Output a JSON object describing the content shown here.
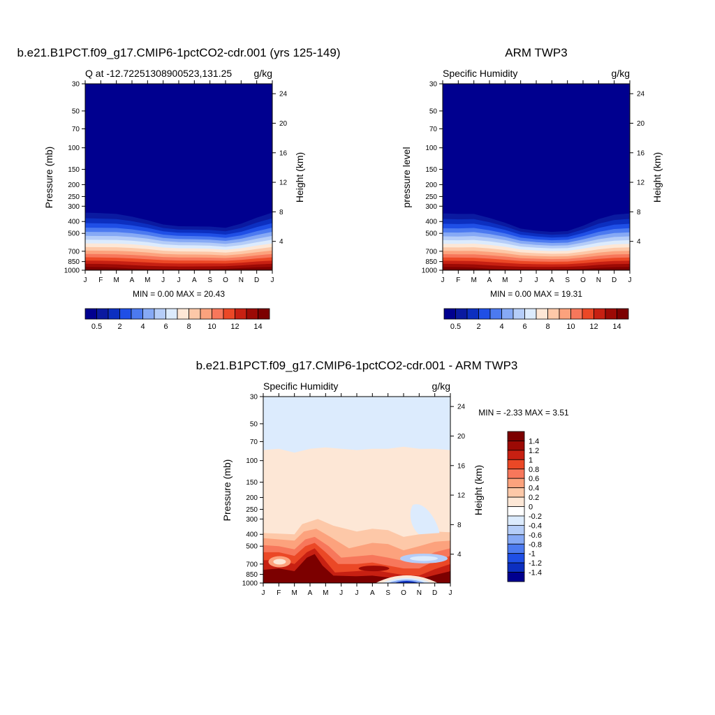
{
  "colors": {
    "levels": [
      "#00008f",
      "#0a1aa0",
      "#0c2fc0",
      "#1f4fe6",
      "#4c7af0",
      "#86a9f5",
      "#b5cdf8",
      "#dcebfd",
      "#fde7d6",
      "#fdc8a8",
      "#fca27d",
      "#f7775b",
      "#eb4826",
      "#c72012",
      "#9c0a05",
      "#7c0000"
    ],
    "diff": [
      "#00008f",
      "#0c2fc0",
      "#1f4fe6",
      "#4c7af0",
      "#86a9f5",
      "#b5cdf8",
      "#dcebfd",
      "#ffffff",
      "#fde7d6",
      "#fdc8a8",
      "#fca27d",
      "#f7775b",
      "#eb4826",
      "#c72012",
      "#9c0a05",
      "#7c0000"
    ]
  },
  "months": [
    "J",
    "F",
    "M",
    "A",
    "M",
    "J",
    "J",
    "A",
    "S",
    "O",
    "N",
    "D",
    "J"
  ],
  "pressure_ticks": [
    "30",
    "50",
    "70",
    "100",
    "150",
    "200",
    "250",
    "300",
    "400",
    "500",
    "700",
    "850",
    "1000"
  ],
  "height_ticks": [
    "24",
    "20",
    "16",
    "12",
    "8",
    "4"
  ],
  "chart_data": [
    {
      "type": "heatmap",
      "title": "b.e21.B1PCT.f09_g17.CMIP6-1pctCO2-cdr.001 (yrs 125-149)",
      "subtitle_left": "Q at -12.72251308900523,131.25",
      "subtitle_right": "g/kg",
      "ylabel": "Pressure (mb)",
      "ylabel_right": "Height (km)",
      "min_max": "MIN =   0.00 MAX =  20.43",
      "colorbar_labels": [
        "0.5",
        "2",
        "4",
        "6",
        "8",
        "10",
        "12",
        "14"
      ],
      "moisture_top_mb": [
        290,
        295,
        305,
        330,
        360,
        395,
        410,
        410,
        410,
        415,
        375,
        325,
        290
      ],
      "near_surface_strength": [
        1.0,
        0.95,
        0.8,
        0.55,
        0.35,
        0.25,
        0.2,
        0.25,
        0.35,
        0.55,
        0.8,
        0.95,
        1.0
      ]
    },
    {
      "type": "heatmap",
      "title": "ARM TWP3",
      "subtitle_left": "Specific Humidity",
      "subtitle_right": "g/kg",
      "ylabel": "pressure level",
      "ylabel_right": "Height (km)",
      "min_max": "MIN =   0.00 MAX =  19.31",
      "colorbar_labels": [
        "0.5",
        "2",
        "4",
        "6",
        "8",
        "10",
        "12",
        "14"
      ],
      "moisture_top_mb": [
        295,
        300,
        305,
        340,
        380,
        430,
        450,
        460,
        450,
        400,
        340,
        305,
        295
      ],
      "near_surface_strength": [
        1.0,
        0.95,
        0.8,
        0.5,
        0.3,
        0.2,
        0.15,
        0.2,
        0.3,
        0.5,
        0.8,
        0.95,
        1.0
      ]
    },
    {
      "type": "heatmap",
      "title": "b.e21.B1PCT.f09_g17.CMIP6-1pctCO2-cdr.001 - ARM TWP3",
      "subtitle_left": "Specific Humidity",
      "subtitle_right": "g/kg",
      "ylabel": "Pressure (mb)",
      "ylabel_right": "Height (km)",
      "min_max": "MIN =  -2.33 MAX =   3.51",
      "colorbar_labels": [
        "1.4",
        "1.2",
        "1",
        "0.8",
        "0.6",
        "0.4",
        "0.2",
        "0",
        "-0.2",
        "-0.4",
        "-0.6",
        "-0.8",
        "-1",
        "-1.2",
        "-1.4"
      ]
    }
  ]
}
